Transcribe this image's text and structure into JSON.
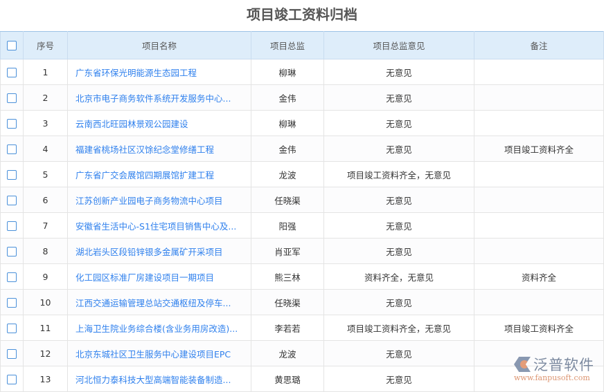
{
  "title": "项目竣工资料归档",
  "columns": [
    "序号",
    "项目名称",
    "项目总监",
    "项目总监意见",
    "备注"
  ],
  "rows": [
    {
      "no": "1",
      "name": "广东省环保光明能源生态园工程",
      "director": "柳琳",
      "opinion": "无意见",
      "remark": ""
    },
    {
      "no": "2",
      "name": "北京市电子商务软件系统开发服务中心...",
      "director": "金伟",
      "opinion": "无意见",
      "remark": ""
    },
    {
      "no": "3",
      "name": "云南西北旺园林景观公园建设",
      "director": "柳琳",
      "opinion": "无意见",
      "remark": ""
    },
    {
      "no": "4",
      "name": "福建省桃场社区汉馀纪念堂修缮工程",
      "director": "金伟",
      "opinion": "无意见",
      "remark": "项目竣工资料齐全"
    },
    {
      "no": "5",
      "name": "广东省广交会展馆四期展馆扩建工程",
      "director": "龙波",
      "opinion": "项目竣工资料齐全，无意见",
      "remark": ""
    },
    {
      "no": "6",
      "name": "江苏创新产业园电子商务物流中心项目",
      "director": "任晓渠",
      "opinion": "无意见",
      "remark": ""
    },
    {
      "no": "7",
      "name": "安徽省生活中心-S1住宅项目销售中心及...",
      "director": "阳强",
      "opinion": "无意见",
      "remark": ""
    },
    {
      "no": "8",
      "name": "湖北岩头区段铅锌银多金属矿开采项目",
      "director": "肖亚军",
      "opinion": "无意见",
      "remark": ""
    },
    {
      "no": "9",
      "name": "化工园区标准厂房建设项目一期项目",
      "director": "熊三林",
      "opinion": "资料齐全，无意见",
      "remark": "资料齐全"
    },
    {
      "no": "10",
      "name": "江西交通运输管理总站交通枢纽及停车...",
      "director": "任晓渠",
      "opinion": "无意见",
      "remark": ""
    },
    {
      "no": "11",
      "name": "上海卫生院业务综合楼(含业务用房改造)...",
      "director": "李若若",
      "opinion": "项目竣工资料齐全，无意见",
      "remark": "项目竣工资料齐全"
    },
    {
      "no": "12",
      "name": "北京东城社区卫生服务中心建设项目EPC",
      "director": "龙波",
      "opinion": "无意见",
      "remark": ""
    },
    {
      "no": "13",
      "name": "河北恒力泰科技大型高端智能装备制造...",
      "director": "黄思璐",
      "opinion": "无意见",
      "remark": ""
    }
  ],
  "logo": {
    "name": "泛普软件",
    "url": "www.fanpusoft.com"
  }
}
